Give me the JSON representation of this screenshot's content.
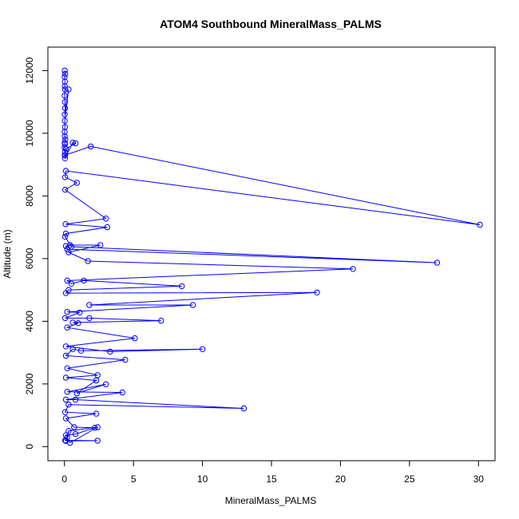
{
  "chart_data": {
    "type": "line",
    "title": "ATOM4 Southbound MineralMass_PALMS",
    "xlabel": "MineralMass_PALMS",
    "ylabel": "Altitude (m)",
    "xlim": [
      -1.2,
      31.2
    ],
    "ylim": [
      -450,
      12750
    ],
    "xticks": [
      0,
      5,
      10,
      15,
      20,
      25,
      30
    ],
    "yticks": [
      0,
      2000,
      4000,
      6000,
      8000,
      10000,
      12000
    ],
    "grid": false,
    "legend": "none",
    "marker": "open-circle",
    "color": "#0000ff",
    "series": [
      {
        "x": [
          0.02,
          0.05,
          0.01,
          0.03,
          0.02,
          0.04,
          0.01,
          0.03,
          0.05,
          0.02,
          0.3,
          0.02,
          0.04,
          0.01,
          0.02,
          0.06,
          0.02,
          0.03,
          0.01,
          0.03,
          0.02,
          0.04,
          0.6,
          0.8,
          0.1,
          0.04,
          1.9,
          30.1,
          0.1,
          0.05,
          0.9,
          0.05,
          3.0,
          0.08,
          3.1,
          0.1,
          0.05,
          0.5,
          27.0,
          0.2,
          0.1,
          0.4,
          2.6,
          0.3,
          1.7,
          20.9,
          0.2,
          0.5,
          1.4,
          8.5,
          0.3,
          0.1,
          18.3,
          1.8,
          9.3,
          0.2,
          1.1,
          0.05,
          1.8,
          7.0,
          0.6,
          1.0,
          0.2,
          5.1,
          0.1,
          3.3,
          10.0,
          1.2,
          0.6,
          0.1,
          4.4,
          0.2,
          2.4,
          0.1,
          2.3,
          0.9,
          3.0,
          0.2,
          4.2,
          0.1,
          0.8,
          13.0,
          0.3,
          0.05,
          2.3,
          0.1,
          0.7,
          2.2,
          0.8,
          0.1,
          0.4,
          2.4,
          0.3,
          0.2,
          0.05,
          2.4,
          0.1
        ],
        "y": [
          12000,
          11900,
          11800,
          11650,
          11500,
          11400,
          11200,
          11000,
          10800,
          10600,
          11400,
          10400,
          10200,
          10050,
          9900,
          9800,
          9700,
          9650,
          9550,
          9400,
          9300,
          9200,
          9700,
          9680,
          9500,
          9300,
          9580,
          7080,
          8800,
          8600,
          8420,
          8200,
          7280,
          7100,
          7000,
          6800,
          6700,
          6380,
          5870,
          6300,
          6400,
          6430,
          6430,
          6200,
          5920,
          5670,
          5300,
          5200,
          5300,
          5120,
          5000,
          4900,
          4920,
          4520,
          4520,
          4300,
          4280,
          4100,
          4100,
          4020,
          3960,
          3940,
          3800,
          3460,
          3200,
          3030,
          3110,
          3060,
          3110,
          2900,
          2770,
          2500,
          2280,
          2200,
          2110,
          1700,
          1990,
          1750,
          1730,
          1500,
          1500,
          1220,
          1340,
          1100,
          1050,
          900,
          620,
          600,
          400,
          360,
          120,
          620,
          500,
          300,
          200,
          190,
          180
        ]
      }
    ]
  }
}
